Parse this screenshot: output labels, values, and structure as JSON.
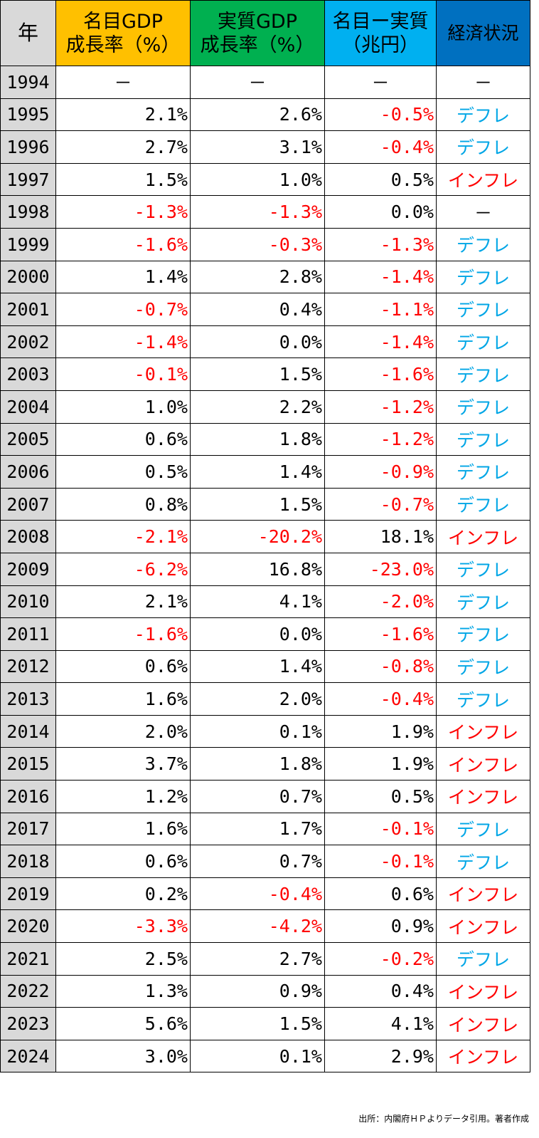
{
  "headers": {
    "year": "年",
    "nominal_line1": "名目GDP",
    "nominal_line2": "成長率（%）",
    "real_line1": "実質GDP",
    "real_line2": "成長率（%）",
    "diff_line1": "名目ー実質",
    "diff_line2": "（兆円）",
    "economy": "経済状況"
  },
  "colors": {
    "header_year": "#d9d9d9",
    "header_nominal": "#ffc000",
    "header_real": "#00b050",
    "header_diff": "#00b0f0",
    "header_economy": "#0070c0",
    "negative": "#ff0000",
    "deflation": "#00a6e6",
    "inflation": "#ff0000"
  },
  "rows": [
    {
      "year": "1994",
      "nominal": "－",
      "real": "－",
      "diff": "－",
      "status": "－"
    },
    {
      "year": "1995",
      "nominal": "2.1%",
      "real": "2.6%",
      "diff": "-0.5%",
      "status": "デフレ"
    },
    {
      "year": "1996",
      "nominal": "2.7%",
      "real": "3.1%",
      "diff": "-0.4%",
      "status": "デフレ"
    },
    {
      "year": "1997",
      "nominal": "1.5%",
      "real": "1.0%",
      "diff": "0.5%",
      "status": "インフレ"
    },
    {
      "year": "1998",
      "nominal": "-1.3%",
      "real": "-1.3%",
      "diff": "0.0%",
      "status": "－"
    },
    {
      "year": "1999",
      "nominal": "-1.6%",
      "real": "-0.3%",
      "diff": "-1.3%",
      "status": "デフレ"
    },
    {
      "year": "2000",
      "nominal": "1.4%",
      "real": "2.8%",
      "diff": "-1.4%",
      "status": "デフレ"
    },
    {
      "year": "2001",
      "nominal": "-0.7%",
      "real": "0.4%",
      "diff": "-1.1%",
      "status": "デフレ"
    },
    {
      "year": "2002",
      "nominal": "-1.4%",
      "real": "0.0%",
      "diff": "-1.4%",
      "status": "デフレ"
    },
    {
      "year": "2003",
      "nominal": "-0.1%",
      "real": "1.5%",
      "diff": "-1.6%",
      "status": "デフレ"
    },
    {
      "year": "2004",
      "nominal": "1.0%",
      "real": "2.2%",
      "diff": "-1.2%",
      "status": "デフレ"
    },
    {
      "year": "2005",
      "nominal": "0.6%",
      "real": "1.8%",
      "diff": "-1.2%",
      "status": "デフレ"
    },
    {
      "year": "2006",
      "nominal": "0.5%",
      "real": "1.4%",
      "diff": "-0.9%",
      "status": "デフレ"
    },
    {
      "year": "2007",
      "nominal": "0.8%",
      "real": "1.5%",
      "diff": "-0.7%",
      "status": "デフレ"
    },
    {
      "year": "2008",
      "nominal": "-2.1%",
      "real": "-20.2%",
      "diff": "18.1%",
      "status": "インフレ"
    },
    {
      "year": "2009",
      "nominal": "-6.2%",
      "real": "16.8%",
      "diff": "-23.0%",
      "status": "デフレ"
    },
    {
      "year": "2010",
      "nominal": "2.1%",
      "real": "4.1%",
      "diff": "-2.0%",
      "status": "デフレ"
    },
    {
      "year": "2011",
      "nominal": "-1.6%",
      "real": "0.0%",
      "diff": "-1.6%",
      "status": "デフレ"
    },
    {
      "year": "2012",
      "nominal": "0.6%",
      "real": "1.4%",
      "diff": "-0.8%",
      "status": "デフレ"
    },
    {
      "year": "2013",
      "nominal": "1.6%",
      "real": "2.0%",
      "diff": "-0.4%",
      "status": "デフレ"
    },
    {
      "year": "2014",
      "nominal": "2.0%",
      "real": "0.1%",
      "diff": "1.9%",
      "status": "インフレ"
    },
    {
      "year": "2015",
      "nominal": "3.7%",
      "real": "1.8%",
      "diff": "1.9%",
      "status": "インフレ"
    },
    {
      "year": "2016",
      "nominal": "1.2%",
      "real": "0.7%",
      "diff": "0.5%",
      "status": "インフレ"
    },
    {
      "year": "2017",
      "nominal": "1.6%",
      "real": "1.7%",
      "diff": "-0.1%",
      "status": "デフレ"
    },
    {
      "year": "2018",
      "nominal": "0.6%",
      "real": "0.7%",
      "diff": "-0.1%",
      "status": "デフレ"
    },
    {
      "year": "2019",
      "nominal": "0.2%",
      "real": "-0.4%",
      "diff": "0.6%",
      "status": "インフレ"
    },
    {
      "year": "2020",
      "nominal": "-3.3%",
      "real": "-4.2%",
      "diff": "0.9%",
      "status": "インフレ"
    },
    {
      "year": "2021",
      "nominal": "2.5%",
      "real": "2.7%",
      "diff": "-0.2%",
      "status": "デフレ"
    },
    {
      "year": "2022",
      "nominal": "1.3%",
      "real": "0.9%",
      "diff": "0.4%",
      "status": "インフレ"
    },
    {
      "year": "2023",
      "nominal": "5.6%",
      "real": "1.5%",
      "diff": "4.1%",
      "status": "インフレ"
    },
    {
      "year": "2024",
      "nominal": "3.0%",
      "real": "0.1%",
      "diff": "2.9%",
      "status": "インフレ"
    }
  ],
  "source": "出所：内閣府ＨＰよりデータ引用。著者作成"
}
